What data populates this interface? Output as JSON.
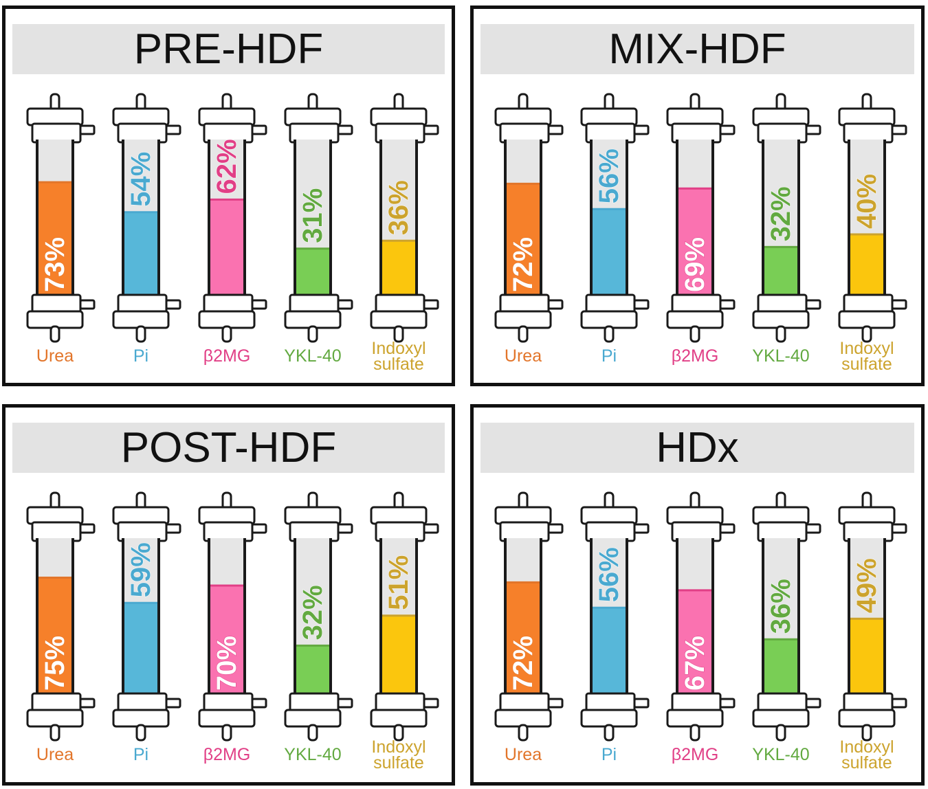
{
  "labels": [
    "Urea",
    "Pi",
    "β2MG",
    "YKL-40",
    [
      "Indoxyl",
      "sulfate"
    ]
  ],
  "colors": {
    "fill": [
      "#f6802a",
      "#57b7d9",
      "#fa72b0",
      "#79ce55",
      "#fbc60d"
    ],
    "label": [
      "#e2752a",
      "#4aa9d0",
      "#e13f86",
      "#62a940",
      "#cca32d"
    ],
    "empty": "#e6e6e6",
    "outline": "#1a1a1a"
  },
  "panels": [
    {
      "title": "PRE-HDF",
      "values": [
        "73%",
        "54%",
        "62%",
        "31%",
        "36%"
      ]
    },
    {
      "title": "MIX-HDF",
      "values": [
        "72%",
        "56%",
        "69%",
        "32%",
        "40%"
      ]
    },
    {
      "title": "POST-HDF",
      "values": [
        "75%",
        "59%",
        "70%",
        "32%",
        "51%"
      ]
    },
    {
      "title": "HDx",
      "values": [
        "72%",
        "56%",
        "67%",
        "36%",
        "49%"
      ]
    }
  ],
  "chart_data": [
    {
      "type": "bar",
      "title": "PRE-HDF",
      "categories": [
        "Urea",
        "Pi",
        "β2MG",
        "YKL-40",
        "Indoxyl sulfate"
      ],
      "values": [
        73,
        54,
        62,
        31,
        36
      ],
      "ylim": [
        0,
        100
      ]
    },
    {
      "type": "bar",
      "title": "MIX-HDF",
      "categories": [
        "Urea",
        "Pi",
        "β2MG",
        "YKL-40",
        "Indoxyl sulfate"
      ],
      "values": [
        72,
        56,
        69,
        32,
        40
      ],
      "ylim": [
        0,
        100
      ]
    },
    {
      "type": "bar",
      "title": "POST-HDF",
      "categories": [
        "Urea",
        "Pi",
        "β2MG",
        "YKL-40",
        "Indoxyl sulfate"
      ],
      "values": [
        75,
        59,
        70,
        32,
        51
      ],
      "ylim": [
        0,
        100
      ]
    },
    {
      "type": "bar",
      "title": "HDx",
      "categories": [
        "Urea",
        "Pi",
        "β2MG",
        "YKL-40",
        "Indoxyl sulfate"
      ],
      "values": [
        72,
        56,
        67,
        36,
        49
      ],
      "ylim": [
        0,
        100
      ]
    }
  ]
}
